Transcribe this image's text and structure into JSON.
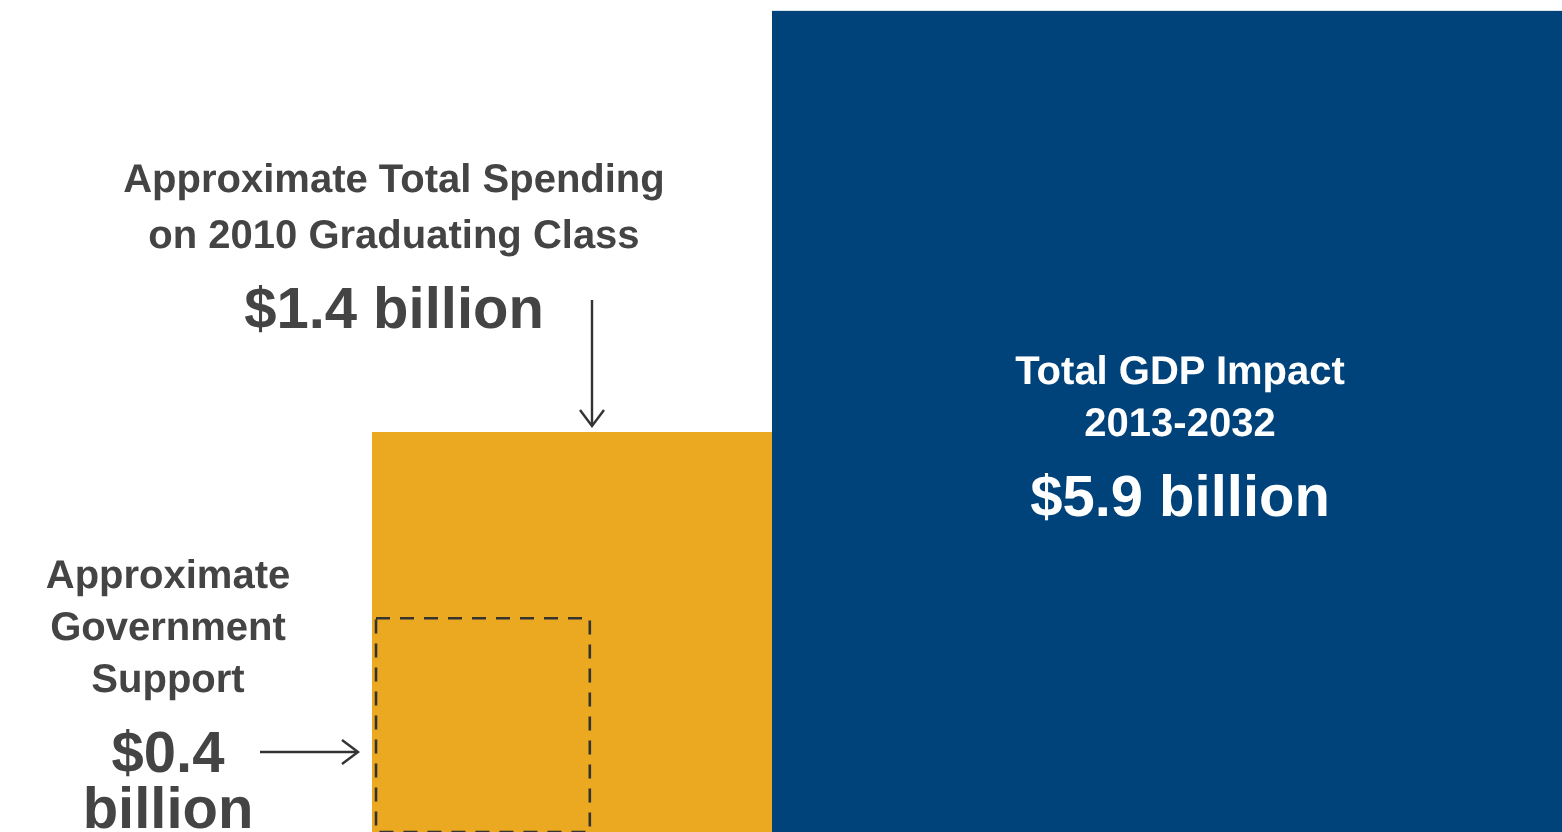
{
  "chart_data": {
    "type": "other",
    "categories": [
      "Approximate Total Spending on 2010 Graduating Class",
      "Total GDP Impact 2013-2032",
      "Approximate Government Support"
    ],
    "values": [
      1.4,
      5.9,
      0.4
    ],
    "colors": [
      "#eba922",
      "#00427a",
      null
    ],
    "value_labels": [
      "$1.4 billion",
      "$5.9 billion",
      "$0.4 billion"
    ]
  }
}
